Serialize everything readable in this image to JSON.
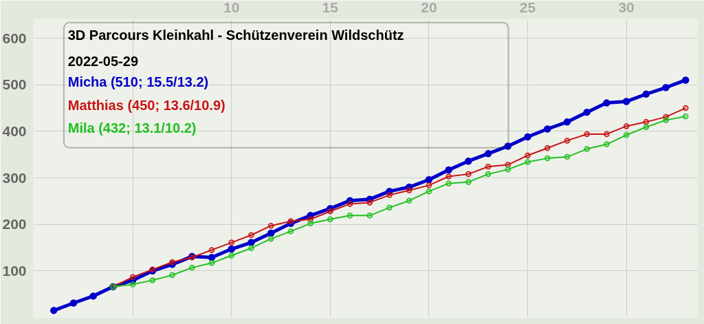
{
  "chart_data": {
    "type": "line",
    "title": "3D Parcours Kleinkahl - Schützenverein Wildschütz",
    "subtitle": "2022-05-29",
    "x": [
      1,
      2,
      3,
      4,
      5,
      6,
      7,
      8,
      9,
      10,
      11,
      12,
      13,
      14,
      15,
      16,
      17,
      18,
      19,
      20,
      21,
      22,
      23,
      24,
      25,
      26,
      27,
      28,
      29,
      30,
      31,
      32,
      33
    ],
    "series": [
      {
        "name": "Micha (510; 15.5/13.2)",
        "color": "#0000c8",
        "values": [
          15,
          31,
          46,
          66,
          80,
          100,
          114,
          131,
          129,
          147,
          161,
          181,
          202,
          219,
          234,
          251,
          254,
          271,
          280,
          296,
          317,
          336,
          352,
          368,
          388,
          405,
          420,
          441,
          461,
          464,
          480,
          494,
          510
        ]
      },
      {
        "name": "Matthias (450; 13.6/10.9)",
        "color": "#c81414",
        "values": [
          null,
          null,
          null,
          66,
          87,
          103,
          119,
          129,
          145,
          161,
          177,
          197,
          207,
          211,
          228,
          244,
          247,
          263,
          273,
          284,
          303,
          308,
          324,
          328,
          348,
          364,
          380,
          394,
          394,
          411,
          420,
          431,
          450
        ]
      },
      {
        "name": "Mila (432; 13.1/10.2)",
        "color": "#22c022",
        "values": [
          null,
          null,
          null,
          66,
          71,
          80,
          91,
          107,
          117,
          133,
          149,
          169,
          185,
          202,
          211,
          219,
          219,
          236,
          251,
          271,
          288,
          291,
          308,
          318,
          334,
          342,
          345,
          362,
          372,
          392,
          409,
          424,
          432
        ]
      }
    ],
    "xlim": [
      0,
      33.6
    ],
    "ylim": [
      0,
      640
    ],
    "xticks": [
      {
        "value": 5,
        "label": null
      },
      10,
      15,
      20,
      25,
      30
    ],
    "yticks": [
      100,
      200,
      300,
      400,
      500,
      600
    ],
    "grid": true,
    "legend": "top left",
    "marker": "circle",
    "line_style": "solid"
  }
}
